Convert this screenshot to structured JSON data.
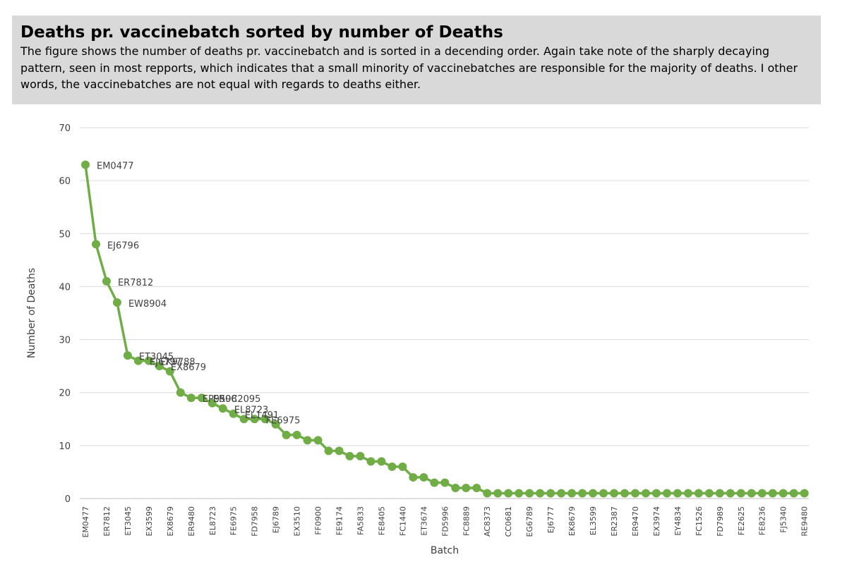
{
  "header": {
    "title": "Deaths pr. vaccinebatch sorted by number of Deaths",
    "description": "The figure shows the number of deaths pr. vaccinebatch and is sorted in a decending order. Again take note of the sharply decaying pattern, seen in most repports, which indicates that a small minority of vaccinebatches are responsible for the majority of deaths. I other words, the vaccinebatches are not equal with regards to deaths either."
  },
  "colors": {
    "series": "#70ad47",
    "grid": "#d9d9d9",
    "header_bg": "#d9d9d9",
    "text": "#404040"
  },
  "chart_data": {
    "type": "line",
    "xlabel": "Batch",
    "ylabel": "Number of Deaths",
    "ylim": [
      0,
      70
    ],
    "y_ticks": [
      0,
      10,
      20,
      30,
      40,
      50,
      60,
      70
    ],
    "grid": true,
    "legend": "none",
    "x_tick_labels": [
      "EM0477",
      "ER7812",
      "ET3045",
      "EX3599",
      "EX8679",
      "ER9480",
      "EL8723",
      "FE6975",
      "FD7958",
      "EJ6789",
      "EX3510",
      "FF0900",
      "FE9174",
      "FA5833",
      "FE8405",
      "FC1440",
      "ET3674",
      "FD5996",
      "FC8889",
      "AC8373",
      "CC0681",
      "EG6789",
      "EJ6777",
      "EK8679",
      "EL3599",
      "ER2387",
      "ER9470",
      "EX3974",
      "EY4834",
      "FC1526",
      "FD7989",
      "FE2625",
      "FE8236",
      "FJ5340",
      "RE9480"
    ],
    "values": [
      63,
      48,
      41,
      37,
      27,
      26,
      26,
      25,
      24,
      20,
      19,
      19,
      18,
      17,
      16,
      15,
      15,
      15,
      14,
      12,
      12,
      11,
      11,
      9,
      9,
      8,
      8,
      7,
      7,
      6,
      6,
      4,
      4,
      3,
      3,
      2,
      2,
      2,
      1,
      1,
      1,
      1,
      1,
      1,
      1,
      1,
      1,
      1,
      1,
      1,
      1,
      1,
      1,
      1,
      1,
      1,
      1,
      1,
      1,
      1,
      1,
      1,
      1,
      1,
      1,
      1,
      1,
      1,
      1
    ],
    "data_labels": [
      {
        "index": 0,
        "text": "EM0477"
      },
      {
        "index": 1,
        "text": "EJ6796"
      },
      {
        "index": 2,
        "text": "ER7812"
      },
      {
        "index": 3,
        "text": "EW8904"
      },
      {
        "index": 4,
        "text": "ET3045"
      },
      {
        "index": 5,
        "text": "EJ6797"
      },
      {
        "index": 6,
        "text": "EK9788"
      },
      {
        "index": 7,
        "text": "EX8679"
      },
      {
        "index": 10,
        "text": "EP9598"
      },
      {
        "index": 11,
        "text": "ER0C2095"
      },
      {
        "index": 13,
        "text": "EL8723"
      },
      {
        "index": 14,
        "text": "EL1491"
      },
      {
        "index": 16,
        "text": "FE6975"
      }
    ]
  }
}
